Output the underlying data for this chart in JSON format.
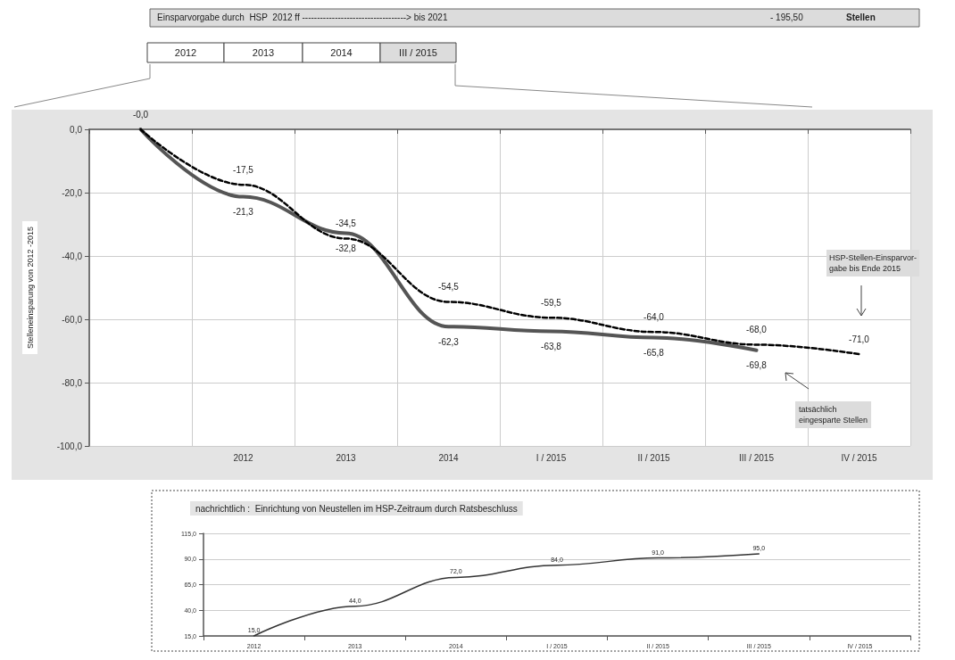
{
  "chart_data": [
    {
      "type": "line",
      "ylabel": "Stelleneinsparung von 2012 -2015",
      "annotations": [
        "Einsparvorgabe durch  HSP  2012 ff -----------------------------------> bis 2021",
        "- 195,50",
        "Stellen",
        "2012",
        "2013",
        "2014",
        "III / 2015",
        "HSP-Stellen-Einsparvor-\ngabe bis Ende 2015",
        "tatsächlich\neingesparte Stellen"
      ],
      "categories": [
        null,
        "2012",
        "2013",
        "2014",
        "I / 2015",
        "II / 2015",
        "III / 2015",
        "IV / 2015"
      ],
      "series": [
        {
          "color": "#000000",
          "line_style": "dashed",
          "values": [
            0,
            -17.5,
            -34.5,
            -54.5,
            -59.5,
            -64.0,
            -68.0,
            -71.0
          ],
          "value_labels": [
            "-0,0",
            "-17,5",
            "-34,5",
            "-54,5",
            "-59,5",
            "-64,0",
            "-68,0",
            "-71,0"
          ]
        },
        {
          "color": "#555555",
          "line_style": "solid",
          "values": [
            0,
            -21.3,
            -32.8,
            -62.3,
            -63.8,
            -65.8,
            -69.8,
            null
          ],
          "value_labels": [
            null,
            "-21,3",
            "-32,8",
            "-62,3",
            "-63,8",
            "-65,8",
            "-69,8",
            null
          ]
        }
      ],
      "ylim": [
        -100,
        0
      ],
      "yticks": [
        {
          "value": -100,
          "label": "-100,0"
        },
        {
          "value": -80,
          "label": "-80,0"
        },
        {
          "value": -60,
          "label": "-60,0"
        },
        {
          "value": -40,
          "label": "-40,0"
        },
        {
          "value": -20,
          "label": "-20,0"
        },
        {
          "value": 0,
          "label": "0,0"
        }
      ],
      "grid": true,
      "marker": "none"
    },
    {
      "type": "line",
      "title": "nachrichtlich :  Einrichtung von Neustellen im HSP-Zeitraum durch Ratsbeschluss",
      "categories": [
        "2012",
        "2013",
        "2014",
        "I / 2015",
        "II / 2015",
        "III / 2015",
        "IV / 2015"
      ],
      "series": [
        {
          "color": "#333333",
          "line_style": "solid",
          "values": [
            15,
            44,
            72,
            84,
            91,
            95,
            null
          ],
          "value_labels": [
            "15,0",
            "44,0",
            "72,0",
            "84,0",
            "91,0",
            "95,0",
            null
          ]
        }
      ],
      "ylim": [
        15,
        115
      ],
      "yticks": [
        {
          "value": 15,
          "label": "15,0"
        },
        {
          "value": 40,
          "label": "40,0"
        },
        {
          "value": 65,
          "label": "65,0"
        },
        {
          "value": 90,
          "label": "90,0"
        },
        {
          "value": 115,
          "label": "115,0"
        }
      ],
      "grid": "y",
      "marker": "none"
    }
  ]
}
